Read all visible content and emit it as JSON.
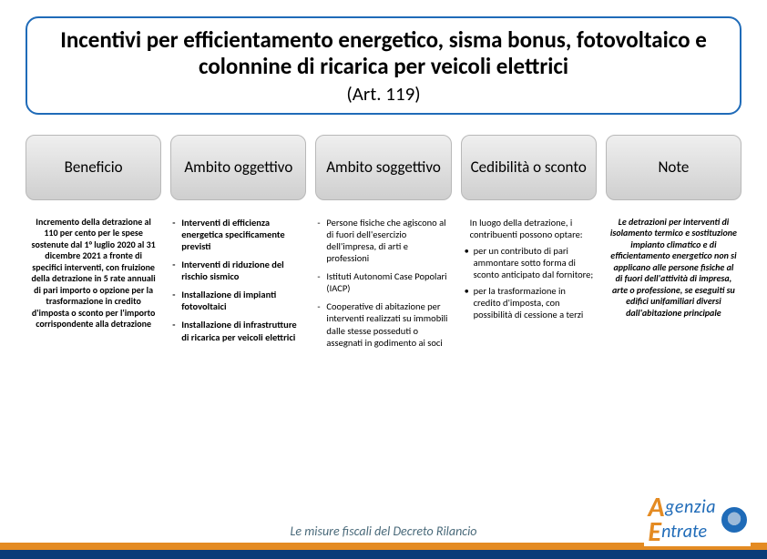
{
  "title": {
    "main": "Incentivi per efficientamento energetico, sisma bonus, fotovoltaico e colonnine di ricarica per veicoli elettrici",
    "article": "(Art. 119)"
  },
  "columns": [
    {
      "header": "Beneficio"
    },
    {
      "header": "Ambito oggettivo"
    },
    {
      "header": "Ambito soggettivo"
    },
    {
      "header": "Cedibilità o sconto"
    },
    {
      "header": "Note"
    }
  ],
  "beneficio": "Incremento della detrazione al 110 per cento per le spese sostenute dal 1° luglio 2020 al 31 dicembre 2021 a fronte di specifici interventi, con fruizione della detrazione in 5 rate annuali di pari importo o opzione per la trasformazione in credito d'imposta o sconto per l'importo corrispondente alla detrazione",
  "oggettivo": [
    "Interventi di efficienza energetica specificamente previsti",
    "Interventi di riduzione del rischio sismico",
    "Installazione di impianti fotovoltaici",
    "Installazione di infrastrutture di ricarica per veicoli elettrici"
  ],
  "soggettivo": [
    "Persone fisiche che agiscono al di fuori dell'esercizio dell'impresa, di arti e professioni",
    "Istituti Autonomi Case Popolari (IACP)",
    "Cooperative di abitazione per interventi realizzati su immobili dalle stesse posseduti o assegnati in godimento ai soci"
  ],
  "cedibilita": {
    "lead": "In luogo della detrazione, i contribuenti possono optare:",
    "items": [
      "per un contributo di pari ammontare sotto forma di sconto anticipato dal fornitore;",
      "per la trasformazione in credito d'imposta, con possibilità di cessione a terzi"
    ]
  },
  "note": "Le detrazioni per interventi di isolamento termico e sostituzione impianto climatico e di efficientamento energetico non si applicano alle persone fisiche al di fuori dell'attività di impresa, arte o professione, se eseguiti su edifici unifamiliari diversi dall'abitazione principale",
  "footer": {
    "caption": "Le misure fiscali del Decreto Rilancio",
    "logo_line1": "genzia",
    "logo_line2": "ntrate"
  },
  "colors": {
    "border_blue": "#1f6bb8",
    "orange": "#e48b23",
    "navy": "#0a3c78"
  }
}
